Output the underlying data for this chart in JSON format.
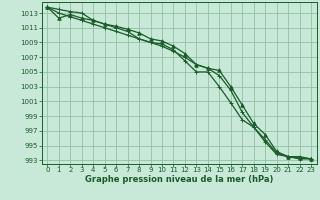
{
  "xlabel": "Graphe pression niveau de la mer (hPa)",
  "bg_color": "#c8e8d8",
  "plot_bg_color": "#c8e8d8",
  "line_color": "#1a5c2a",
  "grid_color": "#88bb99",
  "xlim": [
    -0.5,
    23.5
  ],
  "ylim": [
    992.5,
    1014.5
  ],
  "yticks": [
    993,
    995,
    997,
    999,
    1001,
    1003,
    1005,
    1007,
    1009,
    1011,
    1013
  ],
  "xticks": [
    0,
    1,
    2,
    3,
    4,
    5,
    6,
    7,
    8,
    9,
    10,
    11,
    12,
    13,
    14,
    15,
    16,
    17,
    18,
    19,
    20,
    21,
    22,
    23
  ],
  "series1": [
    1013.8,
    1012.3,
    1012.8,
    1012.3,
    1012.0,
    1011.5,
    1011.2,
    1010.8,
    1010.3,
    1009.5,
    1009.2,
    1008.5,
    1007.5,
    1006.0,
    1005.5,
    1005.2,
    1003.0,
    1000.5,
    998.0,
    996.5,
    994.2,
    993.5,
    993.3,
    993.2
  ],
  "series2": [
    1013.8,
    1013.0,
    1012.5,
    1012.0,
    1011.5,
    1011.0,
    1010.5,
    1010.0,
    1009.5,
    1009.0,
    1008.5,
    1007.8,
    1007.0,
    1006.0,
    1005.5,
    1004.5,
    1002.5,
    999.5,
    997.5,
    995.5,
    993.8,
    993.5,
    993.2,
    993.2
  ],
  "series3": [
    1013.8,
    1013.5,
    1013.2,
    1013.0,
    1012.0,
    1011.5,
    1011.0,
    1010.5,
    1009.5,
    1009.0,
    1008.8,
    1008.0,
    1006.5,
    1005.0,
    1005.0,
    1003.0,
    1000.8,
    998.5,
    997.5,
    995.8,
    994.0,
    993.5,
    993.5,
    993.2
  ],
  "marker1": "^",
  "marker2": "+",
  "marker3": "+",
  "lw": 0.9,
  "ms1": 2.5,
  "ms2": 3.0,
  "ms3": 3.0,
  "tick_labelsize": 5.0,
  "xlabel_fontsize": 6.0
}
